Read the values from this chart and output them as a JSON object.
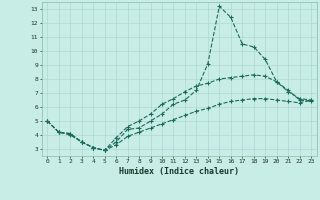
{
  "xlabel": "Humidex (Indice chaleur)",
  "bg_color": "#c8ece6",
  "grid_color": "#b0d8d0",
  "line_color": "#1a6b5a",
  "xlim": [
    -0.5,
    23.5
  ],
  "ylim": [
    2.5,
    13.5
  ],
  "xticks": [
    0,
    1,
    2,
    3,
    4,
    5,
    6,
    7,
    8,
    9,
    10,
    11,
    12,
    13,
    14,
    15,
    16,
    17,
    18,
    19,
    20,
    21,
    22,
    23
  ],
  "yticks": [
    3,
    4,
    5,
    6,
    7,
    8,
    9,
    10,
    11,
    12,
    13
  ],
  "line1_x": [
    0,
    1,
    2,
    3,
    4,
    5,
    6,
    7,
    8,
    9,
    10,
    11,
    12,
    13,
    14,
    15,
    16,
    17,
    18,
    19,
    20,
    21,
    22,
    23
  ],
  "line1_y": [
    5.0,
    4.2,
    4.1,
    3.5,
    3.1,
    2.9,
    3.5,
    4.4,
    4.5,
    5.0,
    5.5,
    6.2,
    6.5,
    7.2,
    9.1,
    13.2,
    12.4,
    10.5,
    10.3,
    9.4,
    7.8,
    7.2,
    6.5,
    6.4
  ],
  "line2_x": [
    0,
    1,
    2,
    3,
    4,
    5,
    6,
    7,
    8,
    9,
    10,
    11,
    12,
    13,
    14,
    15,
    16,
    17,
    18,
    19,
    20,
    21,
    22,
    23
  ],
  "line2_y": [
    5.0,
    4.2,
    4.1,
    3.5,
    3.1,
    2.9,
    3.8,
    4.6,
    5.0,
    5.5,
    6.2,
    6.6,
    7.1,
    7.5,
    7.7,
    8.0,
    8.1,
    8.2,
    8.3,
    8.2,
    7.8,
    7.1,
    6.6,
    6.5
  ],
  "line3_x": [
    0,
    1,
    2,
    3,
    4,
    5,
    6,
    7,
    8,
    9,
    10,
    11,
    12,
    13,
    14,
    15,
    16,
    17,
    18,
    19,
    20,
    21,
    22,
    23
  ],
  "line3_y": [
    5.0,
    4.2,
    4.0,
    3.5,
    3.1,
    2.9,
    3.3,
    3.9,
    4.2,
    4.5,
    4.8,
    5.1,
    5.4,
    5.7,
    5.9,
    6.2,
    6.4,
    6.5,
    6.6,
    6.6,
    6.5,
    6.4,
    6.3,
    6.5
  ]
}
